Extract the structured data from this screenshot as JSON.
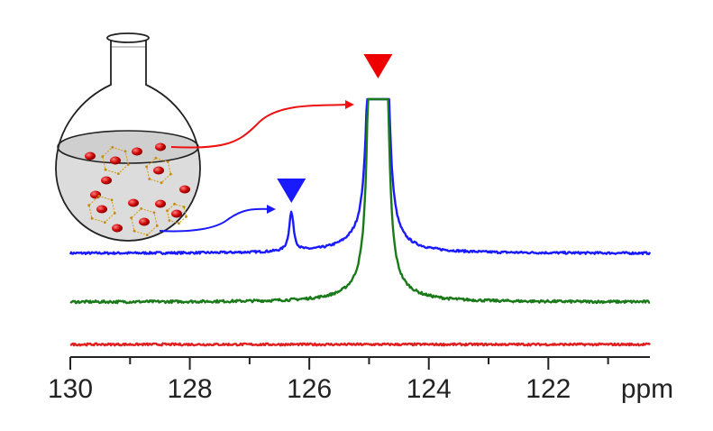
{
  "chart_data": {
    "type": "line",
    "xlabel": "ppm",
    "xlim": [
      130,
      120.3
    ],
    "x_reversed": true,
    "ticks": [
      "130",
      "128",
      "126",
      "124",
      "122"
    ],
    "tick_values": [
      130,
      128,
      126,
      124,
      122
    ],
    "minor_tick_values": [
      129,
      127,
      125,
      123,
      121
    ],
    "series": [
      {
        "color": "#1a1aff",
        "baseline": 0,
        "noise": 0.01,
        "peaks": [
          {
            "ppm": 124.95,
            "height": 5.0,
            "width": 0.05,
            "shape": "lorentzian"
          },
          {
            "ppm": 124.75,
            "height": 5.0,
            "width": 0.05,
            "shape": "lorentzian"
          },
          {
            "ppm": 125.0,
            "height": 0.08,
            "width": 0.55,
            "shape": "lorentzian"
          },
          {
            "ppm": 126.3,
            "height": 0.36,
            "width": 0.045,
            "shape": "lorentzian"
          }
        ]
      },
      {
        "color": "#1a7a1a",
        "baseline": 0,
        "noise": 0.012,
        "peaks": [
          {
            "ppm": 124.95,
            "height": 5.0,
            "width": 0.05,
            "shape": "lorentzian"
          },
          {
            "ppm": 124.75,
            "height": 5.0,
            "width": 0.05,
            "shape": "lorentzian"
          },
          {
            "ppm": 124.85,
            "height": 0.1,
            "width": 0.5,
            "shape": "lorentzian"
          }
        ]
      },
      {
        "color": "#e02020",
        "baseline": 0,
        "noise": 0.01,
        "peaks": []
      }
    ],
    "markers": [
      {
        "ppm": 124.85,
        "color": "#ee0000"
      },
      {
        "ppm": 126.3,
        "color": "#1a1aff"
      }
    ]
  },
  "colors": {
    "red": "#ee1111",
    "blue": "#1a1aff",
    "green": "#1a7a1a",
    "axis": "#222222",
    "liquid": "#dcdcdc",
    "gold": "#d4a017"
  }
}
